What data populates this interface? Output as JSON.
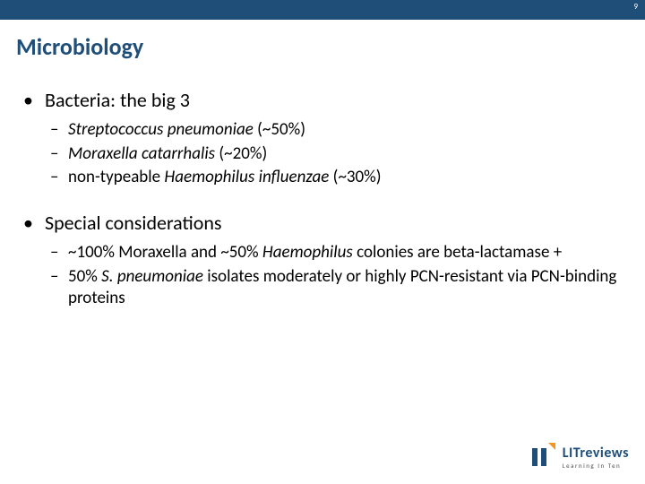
{
  "page_number": "9",
  "title": "Microbiology",
  "sections": [
    {
      "heading": "Bacteria: the big 3",
      "items": [
        {
          "prefix_italic": "Streptococcus pneumoniae",
          "suffix": " (~50%)"
        },
        {
          "prefix_italic": "Moraxella catarrhalis",
          "suffix": " (~20%)"
        },
        {
          "prefix": "non-typeable ",
          "mid_italic": "Haemophilus influenzae",
          "suffix": " (~30%)"
        }
      ]
    },
    {
      "heading": "Special considerations",
      "items": [
        {
          "prefix": "~100% Moraxella and ~50% ",
          "mid_italic": "Haemophilus ",
          "suffix": "colonies are beta-lactamase +"
        },
        {
          "prefix": "50% ",
          "mid_italic": "S. pneumoniae ",
          "suffix": "isolates moderately or highly PCN-resistant via PCN-binding proteins"
        }
      ]
    }
  ],
  "logo": {
    "main": "LITreviews",
    "sub": "Learning In Ten"
  },
  "colors": {
    "brand_blue": "#1f4e79",
    "brand_orange": "#f7941d",
    "text": "#000000",
    "bg": "#ffffff"
  }
}
